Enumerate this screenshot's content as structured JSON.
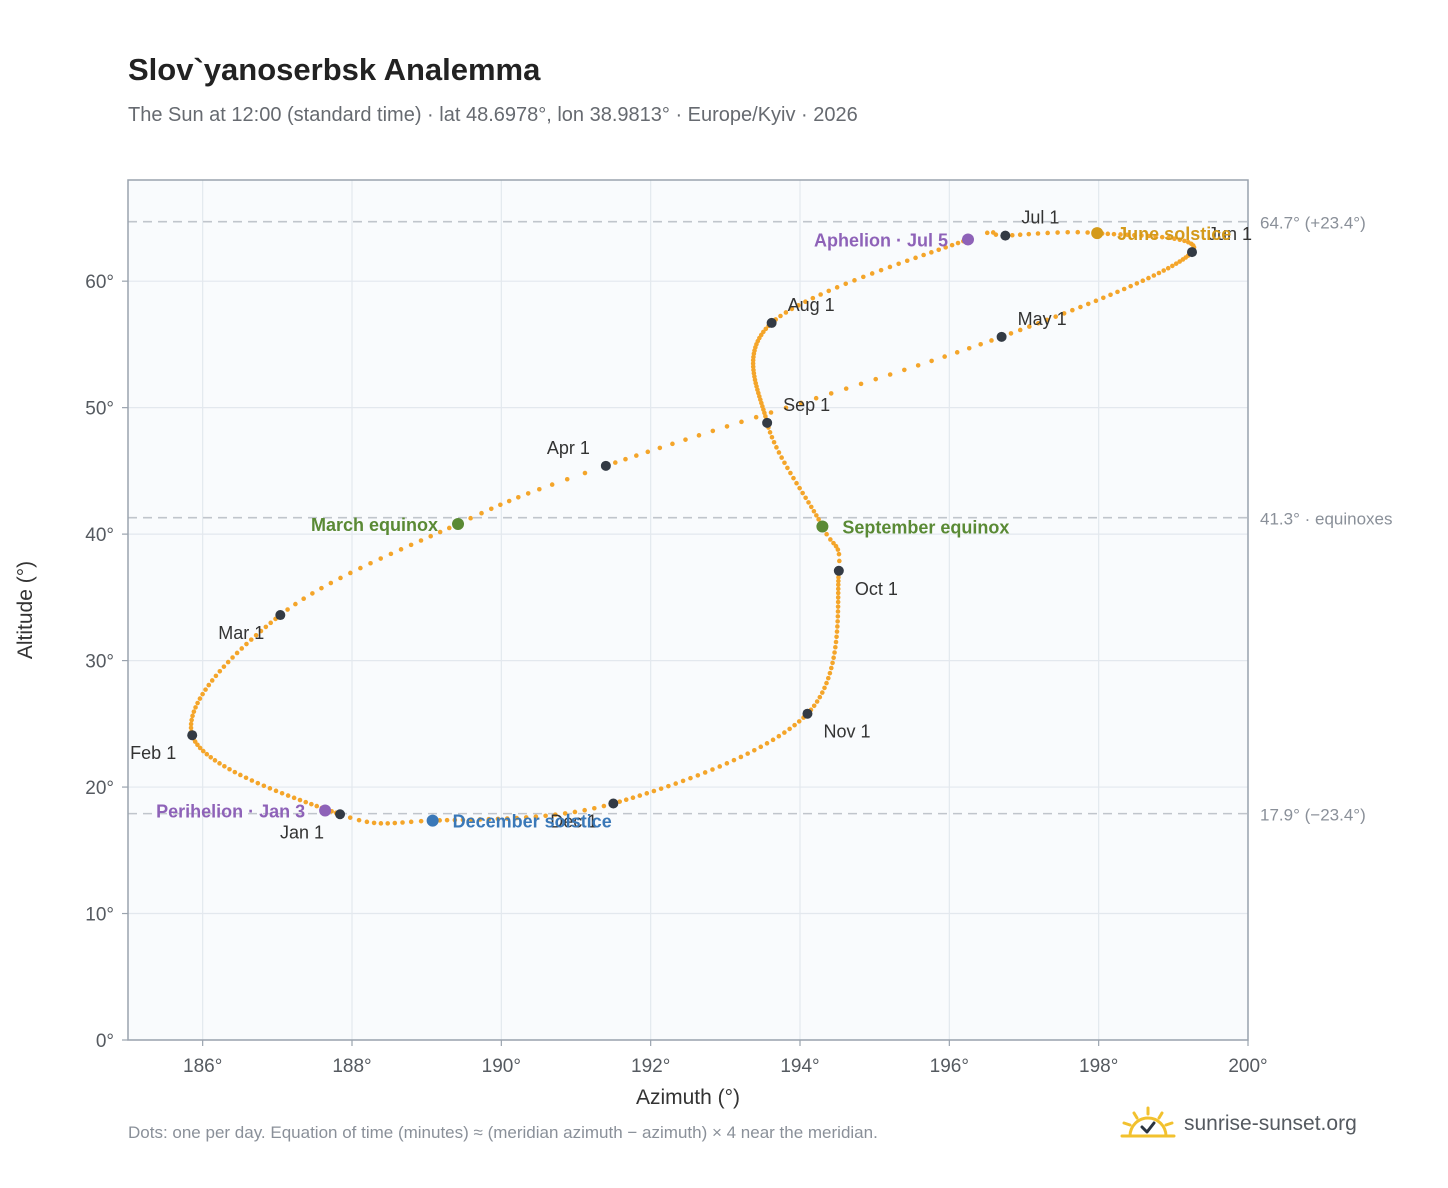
{
  "title": "Slov`yanoserbsk Analemma",
  "subtitle": "The Sun at 12:00 (standard time) · lat 48.6978°, lon 38.9813° · Europe/Kyiv · 2026",
  "footnote": "Dots: one per day. Equation of time (minutes) ≈ (meridian azimuth − azimuth) × 4 near the meridian.",
  "brand": {
    "name": "sunrise-sunset.org",
    "logo_icon": "sun-check-icon"
  },
  "colors": {
    "curve": "#f4a52a",
    "month": "#333a44",
    "equinox": "#5a8a35",
    "solstice_june": "#d49a1a",
    "solstice_dec": "#3a78b8",
    "apsis": "#8e62b8",
    "ref": "#c0c5cc"
  },
  "chart_data": {
    "type": "scatter",
    "title": "Slov`yanoserbsk Analemma",
    "xlabel": "Azimuth (°)",
    "ylabel": "Altitude (°)",
    "xlim": [
      185,
      200
    ],
    "ylim": [
      0,
      68
    ],
    "grid": true,
    "x_ticks": [
      {
        "v": 186,
        "label": "186°"
      },
      {
        "v": 188,
        "label": "188°"
      },
      {
        "v": 190,
        "label": "190°"
      },
      {
        "v": 192,
        "label": "192°"
      },
      {
        "v": 194,
        "label": "194°"
      },
      {
        "v": 196,
        "label": "196°"
      },
      {
        "v": 198,
        "label": "198°"
      },
      {
        "v": 200,
        "label": "200°"
      }
    ],
    "y_ticks": [
      {
        "v": 0,
        "label": "0°"
      },
      {
        "v": 10,
        "label": "10°"
      },
      {
        "v": 20,
        "label": "20°"
      },
      {
        "v": 30,
        "label": "30°"
      },
      {
        "v": 40,
        "label": "40°"
      },
      {
        "v": 50,
        "label": "50°"
      },
      {
        "v": 60,
        "label": "60°"
      }
    ],
    "reference_lines": [
      {
        "y": 64.7,
        "label": "64.7° (+23.4°)"
      },
      {
        "y": 41.3,
        "label": "41.3° · equinoxes"
      },
      {
        "y": 17.9,
        "label": "17.9° (−23.4°)"
      }
    ],
    "curve_anchors": [
      {
        "doy": 1,
        "az": 187.84,
        "alt": 17.85
      },
      {
        "doy": 32,
        "az": 185.86,
        "alt": 24.1
      },
      {
        "doy": 60,
        "az": 187.04,
        "alt": 33.6
      },
      {
        "doy": 79,
        "az": 189.42,
        "alt": 40.8
      },
      {
        "doy": 91,
        "az": 191.4,
        "alt": 45.4
      },
      {
        "doy": 121,
        "az": 196.7,
        "alt": 55.6
      },
      {
        "doy": 152,
        "az": 199.25,
        "alt": 62.3
      },
      {
        "doy": 172,
        "az": 197.98,
        "alt": 63.8
      },
      {
        "doy": 182,
        "az": 196.75,
        "alt": 63.6
      },
      {
        "doy": 186,
        "az": 196.25,
        "alt": 63.3
      },
      {
        "doy": 213,
        "az": 193.62,
        "alt": 56.7
      },
      {
        "doy": 244,
        "az": 193.56,
        "alt": 48.8
      },
      {
        "doy": 266,
        "az": 194.3,
        "alt": 40.6
      },
      {
        "doy": 274,
        "az": 194.52,
        "alt": 37.1
      },
      {
        "doy": 305,
        "az": 194.1,
        "alt": 25.8
      },
      {
        "doy": 335,
        "az": 191.5,
        "alt": 18.7
      },
      {
        "doy": 355,
        "az": 189.08,
        "alt": 17.35
      },
      {
        "doy": 366,
        "az": 187.84,
        "alt": 17.85
      }
    ],
    "month_markers": [
      {
        "label": "Jan 1",
        "az": 187.84,
        "alt": 17.85
      },
      {
        "label": "Feb 1",
        "az": 185.86,
        "alt": 24.1
      },
      {
        "label": "Mar 1",
        "az": 187.04,
        "alt": 33.6
      },
      {
        "label": "Apr 1",
        "az": 191.4,
        "alt": 45.4
      },
      {
        "label": "May 1",
        "az": 196.7,
        "alt": 55.6
      },
      {
        "label": "Jun 1",
        "az": 199.25,
        "alt": 62.3
      },
      {
        "label": "Jul 1",
        "az": 196.75,
        "alt": 63.6
      },
      {
        "label": "Aug 1",
        "az": 193.62,
        "alt": 56.7
      },
      {
        "label": "Sep 1",
        "az": 193.56,
        "alt": 48.8
      },
      {
        "label": "Oct 1",
        "az": 194.52,
        "alt": 37.1
      },
      {
        "label": "Nov 1",
        "az": 194.1,
        "alt": 25.8
      },
      {
        "label": "Dec 1",
        "az": 191.5,
        "alt": 18.7
      }
    ],
    "events": [
      {
        "label": "March equinox",
        "az": 189.42,
        "alt": 40.8,
        "kind": "equinox"
      },
      {
        "label": "September equinox",
        "az": 194.3,
        "alt": 40.6,
        "kind": "equinox"
      },
      {
        "label": "June solstice",
        "az": 197.98,
        "alt": 63.8,
        "kind": "solstice_june"
      },
      {
        "label": "December solstice",
        "az": 189.08,
        "alt": 17.35,
        "kind": "solstice_dec"
      },
      {
        "label": "Aphelion · Jul 5",
        "az": 196.25,
        "alt": 63.3,
        "kind": "apsis"
      },
      {
        "label": "Perihelion · Jan 3",
        "az": 187.64,
        "alt": 18.15,
        "kind": "apsis"
      }
    ]
  }
}
